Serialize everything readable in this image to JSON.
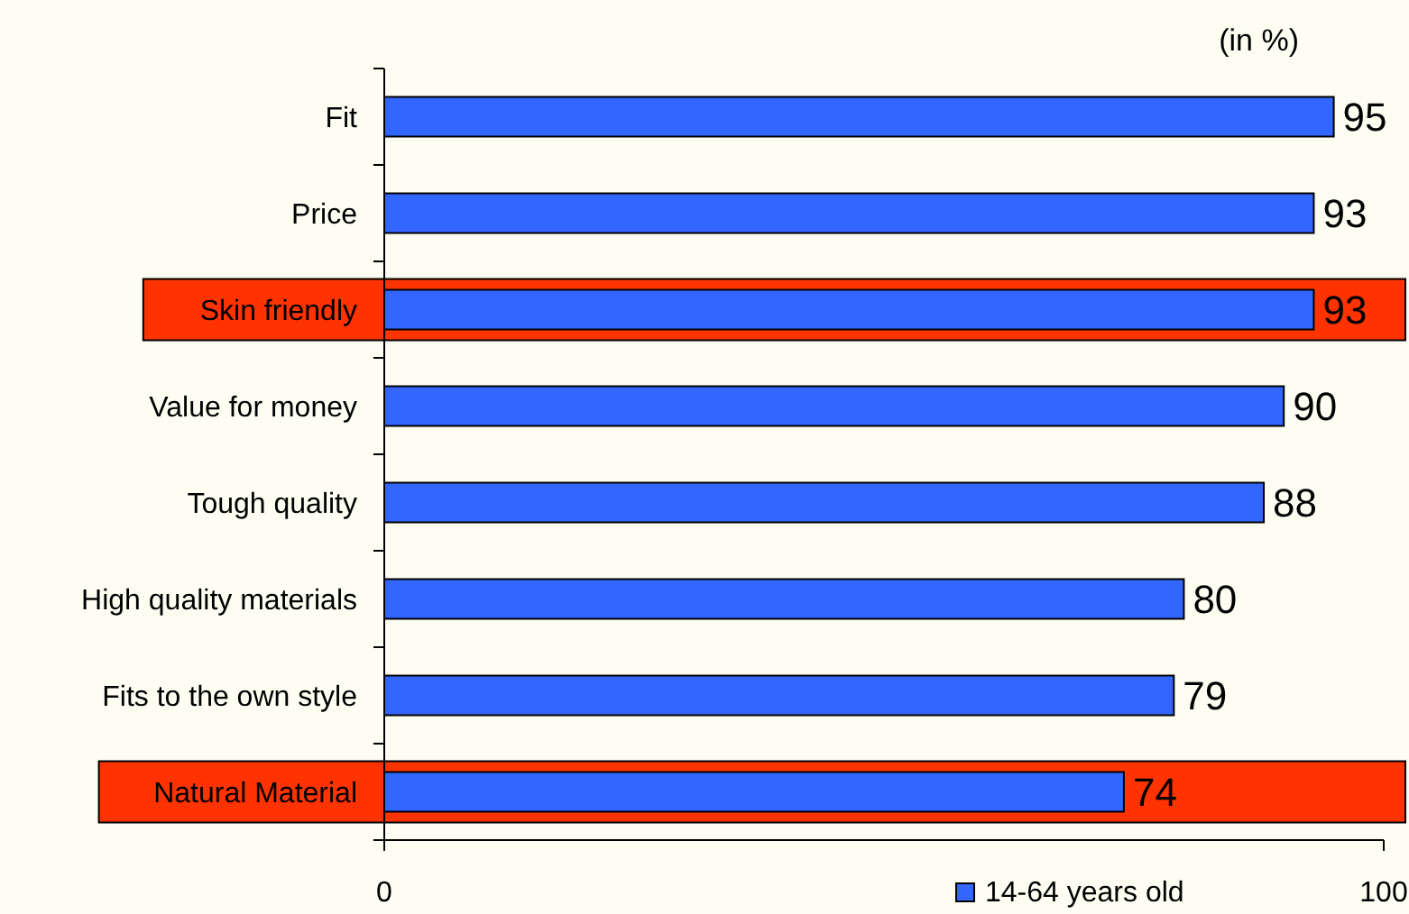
{
  "chart_data": {
    "type": "bar",
    "orientation": "horizontal",
    "categories": [
      "Fit",
      "Price",
      "Skin friendly",
      "Value for money",
      "Tough quality",
      "High quality materials",
      "Fits to the own style",
      "Natural Material"
    ],
    "series": [
      {
        "name": "14-64 years old",
        "color": "#3366ff",
        "values": [
          95,
          93,
          93,
          90,
          88,
          80,
          79,
          74
        ]
      }
    ],
    "xlim": [
      0,
      100
    ],
    "xticks": [
      0,
      100
    ],
    "data_labels": true,
    "legend": "bottom",
    "annotations": [
      "(in %)"
    ],
    "bands": [
      {
        "axis": "y",
        "from": "Skin friendly",
        "to": "Skin friendly",
        "color": "#ff3300"
      },
      {
        "axis": "y",
        "from": "Natural Material",
        "to": "Natural Material",
        "color": "#ff3300"
      }
    ]
  }
}
